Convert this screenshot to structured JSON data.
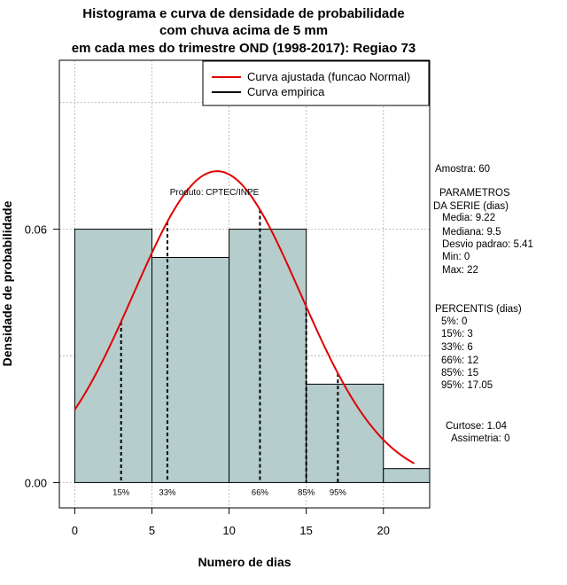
{
  "chart_data": {
    "type": "bar",
    "title_lines": [
      "Histograma e curva de densidade de probabilidade",
      "com chuva acima de 5 mm",
      "em cada mes do trimestre OND (1998-2017): Regiao 73"
    ],
    "xlabel": "Numero de dias",
    "ylabel": "Densidade de probabilidade",
    "xlim": [
      -1,
      23
    ],
    "ylim": [
      -0.006,
      0.1
    ],
    "x_ticks": [
      0,
      5,
      10,
      15,
      20
    ],
    "x_tick_labels": [
      "0",
      "5",
      "10",
      "15",
      "20"
    ],
    "y_ticks": [
      0,
      0.06
    ],
    "y_tick_labels": [
      "0.00",
      "0.06"
    ],
    "grid_x": [
      0,
      5,
      10,
      15,
      20
    ],
    "grid_y": [
      0,
      0.03,
      0.06,
      0.09
    ],
    "bins": [
      {
        "start": 0,
        "end": 5,
        "density": 0.06
      },
      {
        "start": 5,
        "end": 10,
        "density": 0.0533
      },
      {
        "start": 10,
        "end": 15,
        "density": 0.06
      },
      {
        "start": 15,
        "end": 20,
        "density": 0.0233
      },
      {
        "start": 20,
        "end": 23,
        "density": 0.0033
      }
    ],
    "normal_curve": {
      "name": "Curva ajustada (funcao Normal)",
      "mean": 9.22,
      "sd": 5.41,
      "x_range": [
        0,
        22
      ],
      "color": "#e00000"
    },
    "empirical_curve": {
      "name": "Curva empirica",
      "color": "#000000"
    },
    "percentile_lines": [
      {
        "label": "15%",
        "x": 3
      },
      {
        "label": "33%",
        "x": 6
      },
      {
        "label": "66%",
        "x": 12
      },
      {
        "label": "85%",
        "x": 15
      },
      {
        "label": "95%",
        "x": 17.05
      }
    ],
    "legend_position": "top-right",
    "bar_color": "#b5cdcd",
    "credit": "Produto: CPTEC/INPE"
  },
  "stats": {
    "amostra": "Amostra: 60",
    "parametros_title_1": "PARAMETROS",
    "parametros_title_2": "DA SERIE (dias)",
    "media": "Media: 9.22",
    "mediana": "Mediana: 9.5",
    "desvio": "Desvio padrao: 5.41",
    "min": "Min: 0",
    "max": "Max: 22",
    "percentis_title": "PERCENTIS (dias)",
    "p5": "5%: 0",
    "p15": "15%: 3",
    "p33": "33%: 6",
    "p66": "66%: 12",
    "p85": "85%: 15",
    "p95": "95%: 17.05",
    "curtose": "Curtose: 1.04",
    "assimetria": "Assimetria: 0"
  }
}
